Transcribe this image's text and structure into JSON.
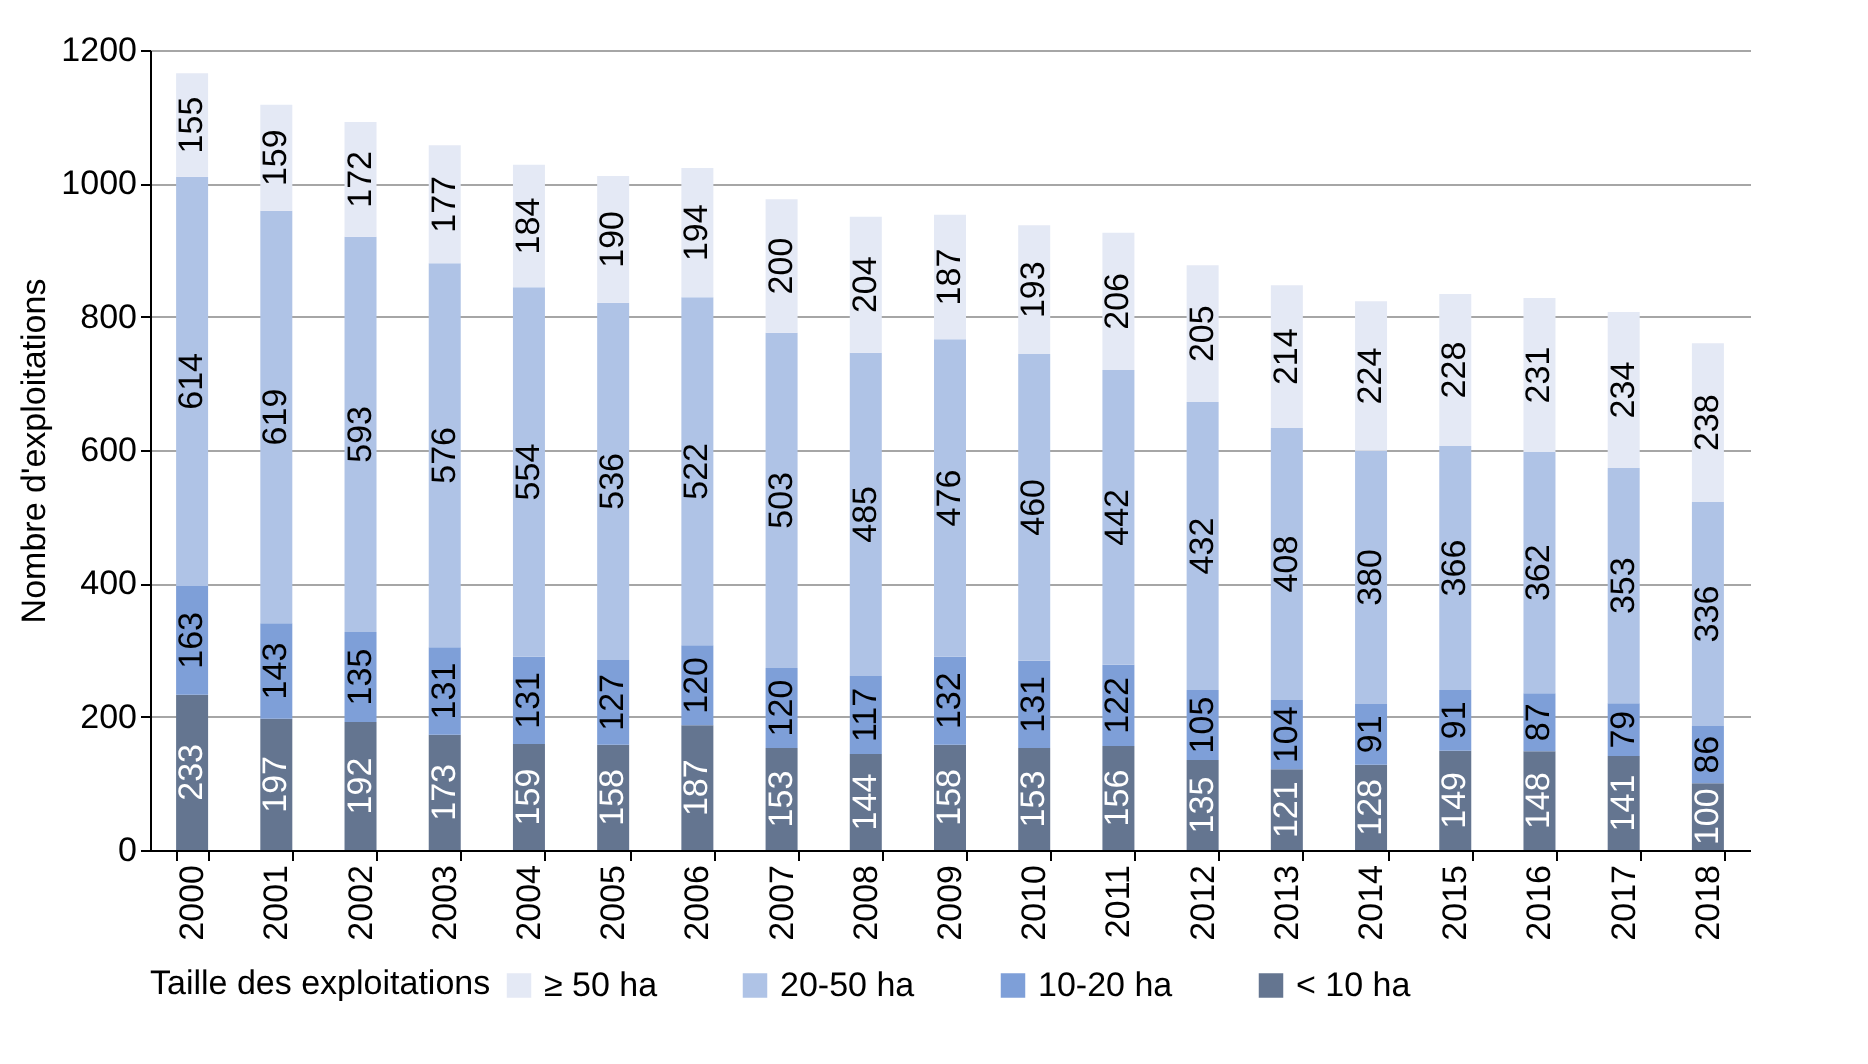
{
  "chart_data": {
    "type": "bar",
    "stacked": true,
    "ylabel": "Nombre d'exploitations",
    "legend_title": "Taille des exploitations",
    "legend": "bottom",
    "grid": "y",
    "data_labels": true,
    "ylim": [
      0,
      1200
    ],
    "yticks": [
      0,
      200,
      400,
      600,
      800,
      1000,
      1200
    ],
    "categories": [
      "2000",
      "2001",
      "2002",
      "2003",
      "2004",
      "2005",
      "2006",
      "2007",
      "2008",
      "2009",
      "2010",
      "2011",
      "2012",
      "2013",
      "2014",
      "2015",
      "2016",
      "2017",
      "2018"
    ],
    "series": [
      {
        "name": "< 10 ha",
        "color": "#647590",
        "values": [
          233,
          197,
          192,
          173,
          159,
          158,
          187,
          153,
          144,
          158,
          153,
          156,
          135,
          121,
          128,
          149,
          148,
          141,
          100
        ]
      },
      {
        "name": "10-20 ha",
        "color": "#7e9fd8",
        "values": [
          163,
          143,
          135,
          131,
          131,
          127,
          120,
          120,
          117,
          132,
          131,
          122,
          105,
          104,
          91,
          91,
          87,
          79,
          86
        ]
      },
      {
        "name": "20-50 ha",
        "color": "#afc3e6",
        "values": [
          614,
          619,
          593,
          576,
          554,
          536,
          522,
          503,
          485,
          476,
          460,
          442,
          432,
          408,
          380,
          366,
          362,
          353,
          336
        ]
      },
      {
        "name": "≥ 50 ha",
        "color": "#e4e9f5",
        "values": [
          155,
          159,
          172,
          177,
          184,
          190,
          194,
          200,
          204,
          187,
          193,
          206,
          205,
          214,
          224,
          228,
          231,
          234,
          238
        ]
      }
    ]
  }
}
